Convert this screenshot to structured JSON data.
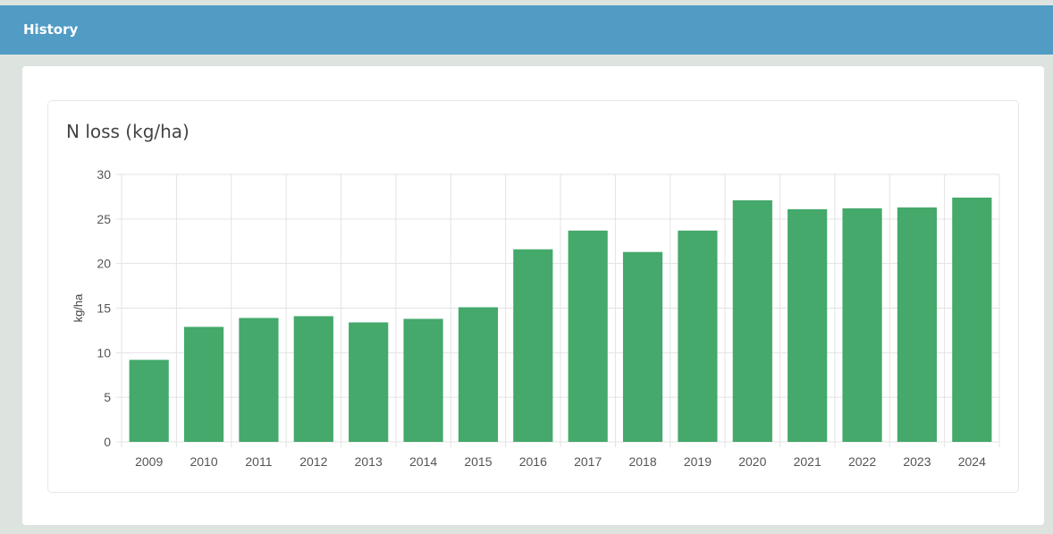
{
  "header": {
    "title": "History"
  },
  "chart_data": {
    "type": "bar",
    "title": "N loss (kg/ha)",
    "xlabel": "",
    "ylabel": "kg/ha",
    "categories": [
      "2009",
      "2010",
      "2011",
      "2012",
      "2013",
      "2014",
      "2015",
      "2016",
      "2017",
      "2018",
      "2019",
      "2020",
      "2021",
      "2022",
      "2023",
      "2024"
    ],
    "values": [
      9.2,
      12.9,
      13.9,
      14.1,
      13.4,
      13.8,
      15.1,
      21.6,
      23.7,
      21.3,
      23.7,
      27.1,
      26.1,
      26.2,
      26.3,
      27.4
    ],
    "ylim": [
      0,
      30
    ],
    "yticks": [
      "0",
      "5",
      "10",
      "15",
      "20",
      "25",
      "30"
    ],
    "grid": true,
    "bar_color": "#44a96b"
  }
}
